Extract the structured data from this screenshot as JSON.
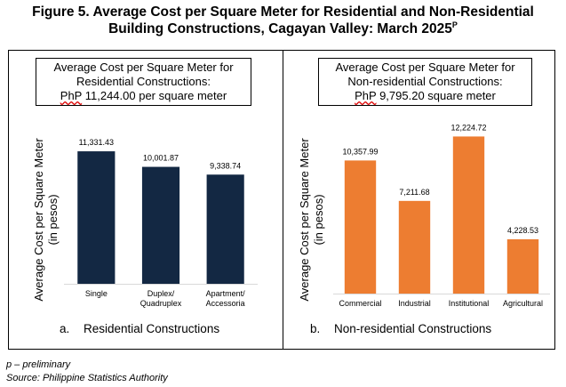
{
  "figure": {
    "title_line1": "Figure 5. Average Cost per Square Meter for Residential and Non-Residential",
    "title_line2": "Building Constructions, Cagayan Valley: March 2025",
    "title_sup": "P"
  },
  "footnotes": {
    "preliminary": "p – preliminary",
    "source": "Source: Philippine Statistics Authority"
  },
  "colors": {
    "residential": "#132843",
    "nonresidential": "#ed7d31"
  },
  "chart_data": [
    {
      "type": "bar",
      "infobox": {
        "line1": "Average Cost per Square Meter for",
        "line2": "Residential Constructions:",
        "line3_prefix": "PhP",
        "line3_rest": " 11,244.00 per square meter"
      },
      "categories": [
        [
          "Single"
        ],
        [
          "Duplex/",
          "Quadruplex"
        ],
        [
          "Apartment/",
          "Accessoria"
        ]
      ],
      "values": [
        11331.43,
        10001.87,
        9338.74
      ],
      "value_labels": [
        "11,331.43",
        "10,001.87",
        "9,338.74"
      ],
      "ylabel_line1": "Average Cost per Square Meter",
      "ylabel_line2": "(in pesos)",
      "ylim": [
        0,
        14000
      ],
      "caption_num": "a.",
      "caption_text": "Residential Constructions",
      "color": "#132843"
    },
    {
      "type": "bar",
      "infobox": {
        "line1": "Average Cost per Square Meter for",
        "line2": "Non-residential Constructions:",
        "line3_prefix": "PhP",
        "line3_rest": " 9,795.20 square meter"
      },
      "categories": [
        [
          "Commercial"
        ],
        [
          "Industrial"
        ],
        [
          "Institutional"
        ],
        [
          "Agricultural"
        ]
      ],
      "values": [
        10357.99,
        7211.68,
        12224.72,
        4228.53
      ],
      "value_labels": [
        "10,357.99",
        "7,211.68",
        "12,224.72",
        "4,228.53"
      ],
      "ylabel_line1": "Average Cost per Square Meter",
      "ylabel_line2": "(in pesos)",
      "ylim": [
        0,
        13500
      ],
      "caption_num": "b.",
      "caption_text": "Non-residential Constructions",
      "color": "#ed7d31"
    }
  ]
}
